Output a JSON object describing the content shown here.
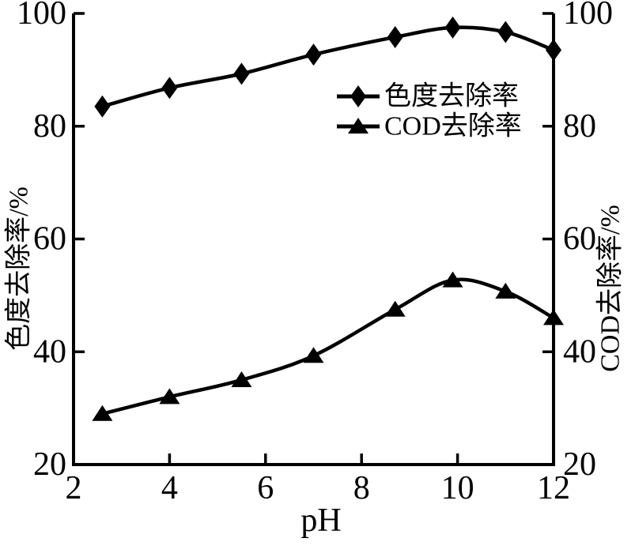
{
  "figure": {
    "background": "#ffffff",
    "ink_color": "#000000"
  },
  "chart_data": {
    "type": "line",
    "title": "",
    "xlabel": "pH",
    "ylabel_left": "色度去除率/%",
    "ylabel_right": "COD去除率/%",
    "xlim": [
      2,
      12
    ],
    "ylim_left": [
      20,
      100
    ],
    "ylim_right": [
      20,
      100
    ],
    "x_ticks": [
      "2",
      "4",
      "6",
      "8",
      "10",
      "12"
    ],
    "y_ticks_left": [
      "20",
      "40",
      "60",
      "80",
      "100"
    ],
    "y_ticks_right": [
      "20",
      "40",
      "60",
      "80",
      "100"
    ],
    "grid": false,
    "legend_position": "inside-upper-right",
    "x": [
      2.6,
      4.0,
      5.5,
      7.0,
      8.7,
      9.9,
      11.0,
      12.0
    ],
    "series": [
      {
        "name": "色度去除率",
        "marker": "diamond",
        "axis": "left",
        "values": [
          83.5,
          86.8,
          89.3,
          92.7,
          95.8,
          97.5,
          96.7,
          93.5
        ]
      },
      {
        "name": "COD去除率",
        "marker": "triangle",
        "axis": "right",
        "values": [
          29.0,
          32.0,
          35.0,
          39.3,
          47.5,
          52.7,
          50.7,
          46.0
        ]
      }
    ]
  }
}
